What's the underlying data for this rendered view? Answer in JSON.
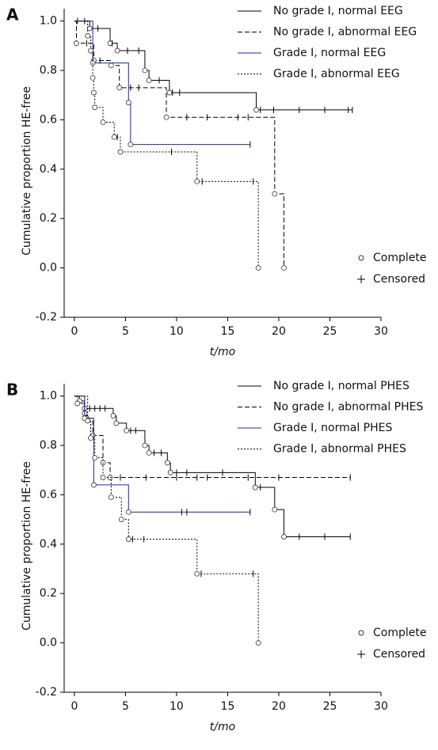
{
  "chart_data": [
    {
      "type": "step",
      "panel": "A",
      "xlabel": "t/mo",
      "ylabel": "Cumulative proportion HE-free",
      "xlim": [
        -1,
        30
      ],
      "xticks": [
        0,
        5,
        10,
        15,
        20,
        25,
        30
      ],
      "ylim": [
        -0.2,
        1.05
      ],
      "yticks": [
        -0.2,
        {
          "value": 0,
          "label": "0.0"
        },
        0.2,
        0.4,
        0.6,
        0.8,
        {
          "value": 1,
          "label": "1.0"
        }
      ],
      "series": [
        {
          "name": "No grade Ⅰ, normal EEG",
          "color": "#000000",
          "dash": "solid",
          "x": [
            0,
            1.5,
            3.5,
            4.2,
            6.9,
            7.3,
            9.3,
            17.8
          ],
          "values": [
            1.0,
            0.97,
            0.91,
            0.88,
            0.8,
            0.76,
            0.71,
            0.64
          ],
          "censored": [
            0.3,
            1.0,
            2.3,
            3.7,
            5.2,
            6.3,
            8.3,
            9.6,
            10.3,
            18.2,
            19.5,
            22,
            24.5,
            26.8,
            27.2
          ]
        },
        {
          "name": "No grade Ⅰ, abnormal EEG",
          "color": "#000000",
          "dash": "dashed",
          "x": [
            0,
            0.2,
            1.9,
            3.6,
            4.4,
            9.0,
            19.6,
            20.5
          ],
          "values": [
            1.0,
            0.91,
            0.84,
            0.82,
            0.73,
            0.61,
            0.3,
            0.0
          ],
          "censored": [
            1.2,
            2.5,
            5.5,
            6.3,
            11,
            13,
            16,
            17
          ]
        },
        {
          "name": "Grade Ⅰ, normal EEG",
          "color": "#1f2a8c",
          "dash": "solid",
          "x": [
            0,
            1.8,
            5.3,
            5.5
          ],
          "values": [
            1.0,
            0.83,
            0.67,
            0.5
          ],
          "censored": [
            17.2
          ]
        },
        {
          "name": "Grade Ⅰ, abnormal EEG",
          "color": "#000000",
          "dash": "dotted",
          "x": [
            0,
            1.3,
            1.6,
            1.8,
            1.9,
            2.0,
            2.8,
            3.9,
            4.5,
            12.0,
            18.0
          ],
          "values": [
            1.0,
            0.94,
            0.88,
            0.77,
            0.71,
            0.65,
            0.59,
            0.53,
            0.47,
            0.35,
            0.0
          ],
          "censored": [
            4.2,
            9.5,
            12.5,
            17.5
          ]
        }
      ],
      "marker_legend": [
        "Complete",
        "Censored"
      ]
    },
    {
      "type": "step",
      "panel": "B",
      "xlabel": "t/mo",
      "ylabel": "Cumulative proportion HE-free",
      "xlim": [
        -1,
        30
      ],
      "xticks": [
        0,
        5,
        10,
        15,
        20,
        25,
        30
      ],
      "ylim": [
        -0.2,
        1.05
      ],
      "yticks": [
        -0.2,
        {
          "value": 0,
          "label": "0.0"
        },
        0.2,
        0.4,
        0.6,
        0.8,
        {
          "value": 1,
          "label": "1.0"
        }
      ],
      "series": [
        {
          "name": "No grade Ⅰ, normal PHES",
          "color": "#000000",
          "dash": "solid",
          "x": [
            0,
            0.5,
            1.0,
            3.8,
            4.1,
            5.1,
            6.9,
            7.3,
            9.1,
            9.4,
            17.7,
            19.6,
            20.5
          ],
          "values": [
            1.0,
            0.98,
            0.95,
            0.92,
            0.89,
            0.86,
            0.8,
            0.77,
            0.73,
            0.69,
            0.63,
            0.54,
            0.43
          ],
          "censored": [
            1.5,
            2,
            2.5,
            3,
            5.5,
            6,
            7.8,
            8.5,
            10,
            11,
            14.5,
            18.2,
            22,
            24.5,
            27
          ]
        },
        {
          "name": "No grade Ⅰ, abnormal PHES",
          "color": "#000000",
          "dash": "dashed",
          "x": [
            0,
            0.3,
            1.0,
            1.2,
            1.8,
            2.8,
            3.5
          ],
          "values": [
            1.0,
            0.97,
            0.93,
            0.91,
            0.84,
            0.73,
            0.67
          ],
          "censored": [
            4.5,
            7,
            10,
            12,
            13,
            17,
            20,
            27
          ]
        },
        {
          "name": "Grade Ⅰ, normal PHES",
          "color": "#1f2a8c",
          "dash": "solid",
          "x": [
            0,
            1.0,
            1.9,
            5.3
          ],
          "values": [
            1.0,
            0.91,
            0.64,
            0.53
          ],
          "censored": [
            10.5,
            11,
            17.2
          ]
        },
        {
          "name": "Grade Ⅰ, abnormal PHES",
          "color": "#000000",
          "dash": "dotted",
          "x": [
            0,
            1.3,
            1.6,
            2.0,
            2.8,
            3.6,
            4.6,
            5.3,
            12.0,
            18.0
          ],
          "values": [
            1.0,
            0.9,
            0.83,
            0.75,
            0.67,
            0.59,
            0.5,
            0.42,
            0.28,
            0.0
          ],
          "censored": [
            5.7,
            6.8,
            12.4,
            17.5
          ]
        }
      ],
      "marker_legend": [
        "Complete",
        "Censored"
      ]
    }
  ]
}
